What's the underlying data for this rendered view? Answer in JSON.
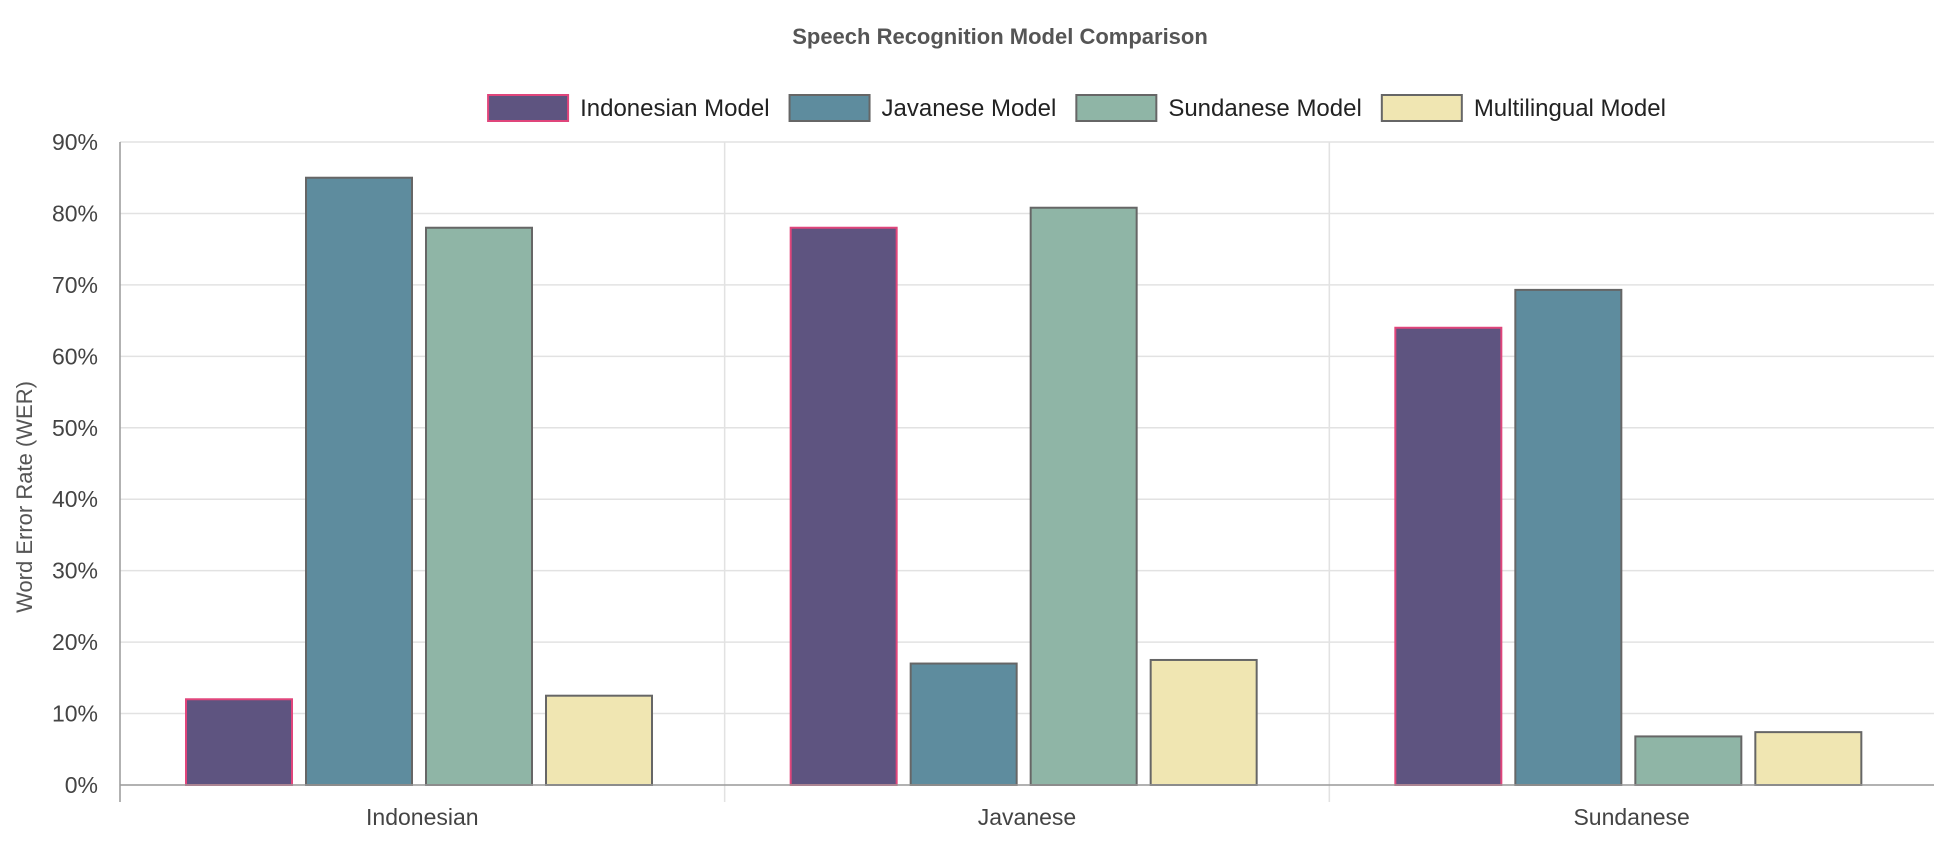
{
  "chart_data": {
    "type": "bar",
    "title": "Speech Recognition Model Comparison",
    "xlabel": "",
    "ylabel": "Word Error Rate (WER)",
    "categories": [
      "Indonesian",
      "Javanese",
      "Sundanese"
    ],
    "series": [
      {
        "name": "Indonesian Model",
        "values": [
          12,
          78,
          64
        ],
        "color": "#5e5480",
        "border": "#e0457b"
      },
      {
        "name": "Javanese Model",
        "values": [
          85,
          17,
          69.3
        ],
        "color": "#5e8c9e",
        "border": "#666666"
      },
      {
        "name": "Sundanese Model",
        "values": [
          78,
          80.8,
          6.8
        ],
        "color": "#8fb5a6",
        "border": "#666666"
      },
      {
        "name": "Multilingual Model",
        "values": [
          12.5,
          17.5,
          7.4
        ],
        "color": "#f0e6b2",
        "border": "#666666"
      }
    ],
    "ylim": [
      0,
      90
    ],
    "yticks": [
      "0%",
      "10%",
      "20%",
      "30%",
      "40%",
      "50%",
      "60%",
      "70%",
      "80%",
      "90%"
    ],
    "grid": true,
    "legend_position": "top"
  }
}
